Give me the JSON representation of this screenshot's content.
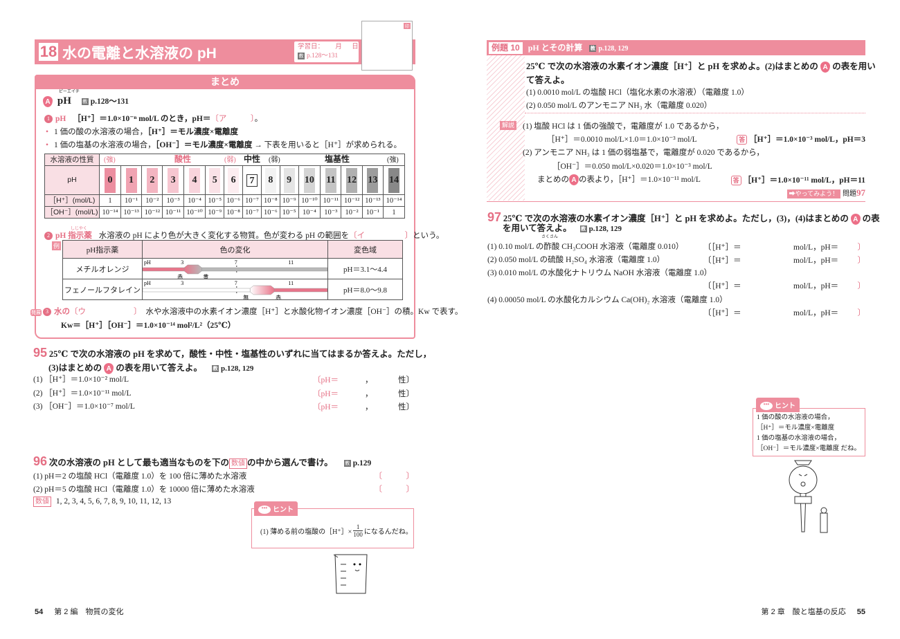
{
  "colors": {
    "accent": "#ee8d9d",
    "accent_text": "#e56f84",
    "light": "#f9dfe4"
  },
  "left": {
    "title": {
      "number": "18",
      "text": "水の電離と水溶液の pH",
      "study_date_label": "学習日：",
      "month": "月",
      "day": "日",
      "ref_icon": "教",
      "ref": "p.128〜131",
      "corner_tag": "印"
    },
    "summary": {
      "header": "まとめ",
      "sectionA": {
        "badge": "A",
        "title": "pH",
        "ruby": "ピーエイチ",
        "ref_icon": "教",
        "ref": "p.128〜131"
      },
      "item1": {
        "num": "1",
        "term": "pH",
        "text": "［H⁺］＝1.0×10⁻ⁿ mol/L のとき，pH＝",
        "blank": "〔ア　　　〕",
        "tail": "。"
      },
      "bullets": [
        {
          "pre": "1 価の酸の水溶液の場合，",
          "bold": "［H⁺］＝モル濃度×電離度",
          "post": ""
        },
        {
          "pre": "1 価の塩基の水溶液の場合，",
          "bold": "［OH⁻］＝モル濃度×電離度",
          "post": " → 下表を用いると［H⁺］が求められる。"
        }
      ],
      "ph_table": {
        "row_labels": [
          "水溶液の性質",
          "pH",
          "［H⁺］(mol/L)",
          "［OH⁻］(mol/L)"
        ],
        "property_labels": {
          "strong_acid": "(強)",
          "acid": "酸性",
          "weak_acid": "(弱)",
          "neutral": "中性",
          "weak_base": "(弱)",
          "base": "塩基性",
          "strong_base": "(強)"
        },
        "ph": [
          "0",
          "1",
          "2",
          "3",
          "4",
          "5",
          "6",
          "7",
          "8",
          "9",
          "10",
          "11",
          "12",
          "13",
          "14"
        ],
        "ph_colors": [
          "#ec8ea0",
          "#f0a3b2",
          "#f3b5c1",
          "#f6c6d0",
          "#f8d4dc",
          "#fae2e7",
          "#fcedf0",
          "#ffffff",
          "#f2f2f2",
          "#e4e4e4",
          "#d4d4d4",
          "#c4c4c4",
          "#b0b0b0",
          "#9c9c9c",
          "#888888"
        ],
        "h": [
          "1",
          "10⁻¹",
          "10⁻²",
          "10⁻³",
          "10⁻⁴",
          "10⁻⁵",
          "10⁻⁶",
          "10⁻⁷",
          "10⁻⁸",
          "10⁻⁹",
          "10⁻¹⁰",
          "10⁻¹¹",
          "10⁻¹²",
          "10⁻¹³",
          "10⁻¹⁴"
        ],
        "oh": [
          "10⁻¹⁴",
          "10⁻¹³",
          "10⁻¹²",
          "10⁻¹¹",
          "10⁻¹⁰",
          "10⁻⁹",
          "10⁻⁸",
          "10⁻⁷",
          "10⁻⁶",
          "10⁻⁵",
          "10⁻⁴",
          "10⁻³",
          "10⁻²",
          "10⁻¹",
          "1"
        ]
      },
      "item2": {
        "num": "2",
        "term": "pH 指示薬",
        "ruby": "しじやく",
        "text": "水溶液の pH により色が大きく変化する物質。色が変わる pH の範囲を",
        "blank": "〔イ　　　　　〕",
        "tail": "という。"
      },
      "indicator_table": {
        "example_label": "例",
        "headers": [
          "pH指示薬",
          "色の変化",
          "変色域"
        ],
        "scale_labels": [
          "pH",
          "3",
          "7",
          "11"
        ],
        "rows": [
          {
            "name": "メチルオレンジ",
            "range_text": "pH＝3.1〜4.4",
            "range": [
              3.1,
              4.4
            ],
            "low_label": "赤",
            "high_label": "黄",
            "low_color": "#e8758a",
            "high_color": "#b8b8b8"
          },
          {
            "name": "フェノールフタレイン",
            "range_text": "pH＝8.0〜9.8",
            "range": [
              8.0,
              9.8
            ],
            "low_label": "無",
            "high_label": "赤",
            "low_color": "#ffffff",
            "high_color": "#e8758a"
          }
        ]
      },
      "item3": {
        "tag": "発展",
        "num": "3",
        "term": "水の",
        "blank": "〔ウ　　　　　　〕",
        "text": "水や水溶液中の水素イオン濃度［H⁺］と水酸化物イオン濃度［OH⁻］の積。Kw で表す。",
        "formula": "Kw＝［H⁺］［OH⁻］＝1.0×10⁻¹⁴ mol²/L²（25℃）"
      }
    },
    "q95": {
      "num": "95",
      "text1": "25℃ で次の水溶液の pH を求めて，酸性・中性・塩基性のいずれに当てはまるか答えよ。ただし，",
      "text2a": "(3)はまとめの",
      "badge": "A",
      "text2b": "の表を用いて答えよ。",
      "ref_icon": "教",
      "ref": "p.128, 129",
      "items": [
        {
          "label": "(1) ［H⁺］＝1.0×10⁻² mol/L"
        },
        {
          "label": "(2) ［H⁺］＝1.0×10⁻¹¹ mol/L"
        },
        {
          "label": "(3) ［OH⁻］＝1.0×10⁻⁷ mol/L"
        }
      ],
      "answer_open": "〔pH＝",
      "answer_comma": "，",
      "answer_close": "性〕"
    },
    "q96": {
      "num": "96",
      "text_a": "次の水溶液の pH として最も適当なものを下の",
      "box": "数値",
      "text_b": "の中から選んで書け。",
      "ref_icon": "教",
      "ref": "p.129",
      "items": [
        "(1) pH＝2 の塩酸 HCl（電離度 1.0）を 100 倍に薄めた水溶液",
        "(2) pH＝5 の塩酸 HCl（電離度 1.0）を 10000 倍に薄めた水溶液"
      ],
      "answer_blank": "〔　　　〕",
      "choices_label": "数値",
      "choices": "1, 2, 3, 4, 5, 6, 7, 8, 9, 10, 11, 12, 13"
    },
    "hint": {
      "label": "ヒント",
      "text_a": "(1) 薄める前の塩酸の［H⁺］×",
      "num": "1",
      "den": "100",
      "text_b": " になるんだね。"
    },
    "footer": {
      "page": "54",
      "text": "第 2 編　物質の変化"
    }
  },
  "right": {
    "example": {
      "label": "例題 10",
      "title": "pH とその計算",
      "ref_icon": "教",
      "ref": "p.128, 129",
      "q1": "25℃ で次の水溶液の水素イオン濃度［H⁺］と pH を求めよ。(2)はまとめの",
      "badge": "A",
      "q1b": "の表を用い",
      "q2": "て答えよ。",
      "items": [
        "(1) 0.0010 mol/L の塩酸 HCl（塩化水素の水溶液）（電離度 1.0）",
        "(2) 0.050 mol/L のアンモニア NH₃ 水（電離度 0.020）"
      ],
      "solution_tag": "解説",
      "sol": [
        "(1) 塩酸 HCl は 1 価の強酸で，電離度が 1.0 であるから，",
        "［H⁺］＝0.0010 mol/L×1.0＝1.0×10⁻³ mol/L",
        "(2) アンモニア NH₃ は 1 価の弱塩基で，電離度が 0.020 であるから，",
        "［OH⁻］＝0.050 mol/L×0.020＝1.0×10⁻³ mol/L",
        "まとめの",
        "の表より，［H⁺］＝1.0×10⁻¹¹ mol/L"
      ],
      "answer_tag": "答",
      "answers": [
        "［H⁺］＝1.0×10⁻³ mol/L，pH＝3",
        "［H⁺］＝1.0×10⁻¹¹ mol/L，pH＝11"
      ],
      "try_label": "➡やってみよう！",
      "try_text": "問題",
      "try_num": "97"
    },
    "q97": {
      "num": "97",
      "text1": "25℃ で次の水溶液の水素イオン濃度［H⁺］と pH を求めよ。ただし，(3)，(4)はまとめの",
      "badge": "A",
      "text1b": "の表",
      "text2": "を用いて答えよ。",
      "ref_icon": "教",
      "ref": "p.128, 129",
      "items": [
        "(1) 0.10 mol/L の酢酸 CH₃COOH 水溶液（電離度 0.010）",
        "(2) 0.050 mol/L の硫酸 H₂SO₄ 水溶液（電離度 1.0）",
        "(3) 0.010 mol/L の水酸化ナトリウム NaOH 水溶液（電離度 1.0）",
        "(4) 0.00050 mol/L の水酸化カルシウム Ca(OH)₂ 水溶液（電離度 1.0）"
      ],
      "ruby": "さくさん",
      "answer_h": "〔［H⁺］＝",
      "answer_unit": "mol/L，pH＝",
      "answer_close": "〕"
    },
    "hint": {
      "label": "ヒント",
      "lines": [
        "1 価の酸の水溶液の場合，",
        "［H⁺］＝モル濃度×電離度",
        "1 価の塩基の水溶液の場合，",
        "［OH⁻］＝モル濃度×電離度 だね。"
      ]
    },
    "footer": {
      "text": "第 2 章　酸と塩基の反応",
      "page": "55"
    }
  }
}
